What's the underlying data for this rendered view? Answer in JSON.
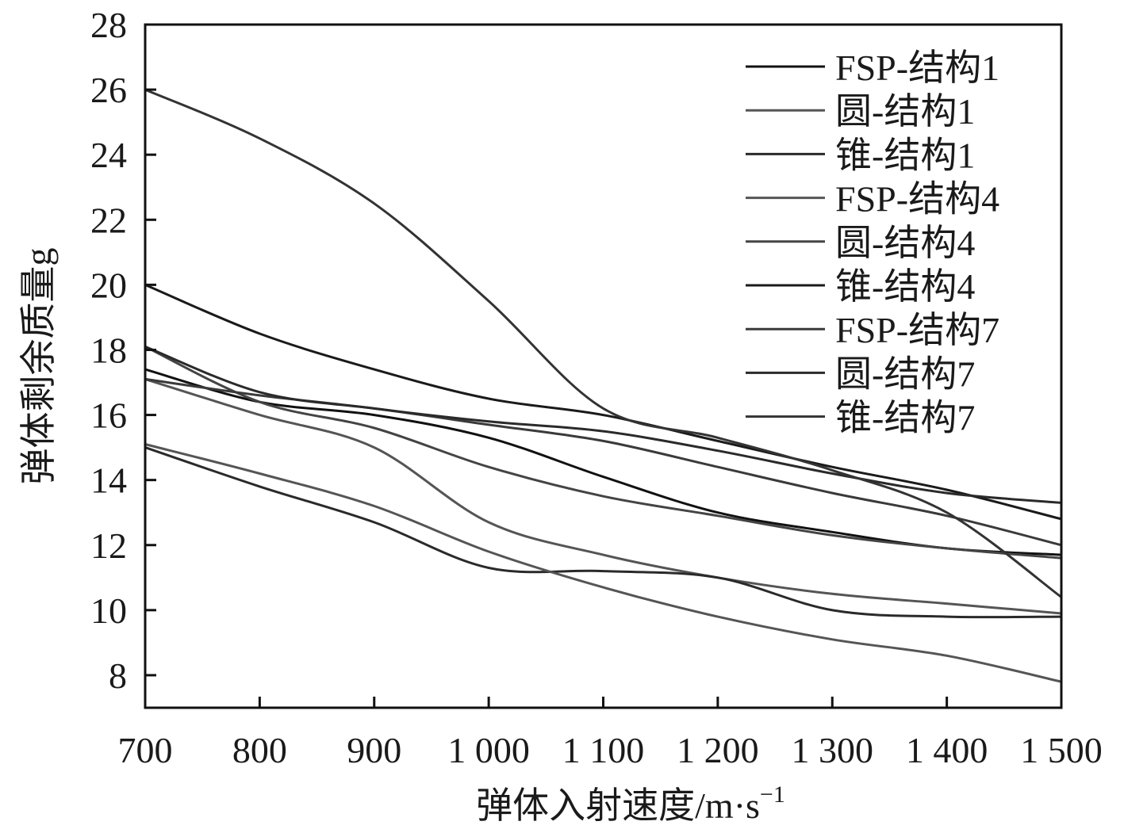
{
  "chart_data": {
    "type": "line",
    "xlabel": "弹体入射速度/m·s",
    "xlabel_sup": "−1",
    "ylabel": "弹体剩余质量g",
    "xlim": [
      700,
      1500
    ],
    "ylim": [
      7,
      28
    ],
    "x_ticks": [
      700,
      800,
      900,
      1000,
      1100,
      1200,
      1300,
      1400,
      1500
    ],
    "x_tick_labels": [
      "700",
      "800",
      "900",
      "1 000",
      "1 100",
      "1 200",
      "1 300",
      "1 400",
      "1 500"
    ],
    "y_ticks": [
      8,
      10,
      12,
      14,
      16,
      18,
      20,
      22,
      24,
      26,
      28
    ],
    "y_tick_labels": [
      "8",
      "10",
      "12",
      "14",
      "16",
      "18",
      "20",
      "22",
      "24",
      "26",
      "28"
    ],
    "grid": false,
    "legend_position": "top-right",
    "x": [
      700,
      800,
      900,
      1000,
      1100,
      1200,
      1300,
      1400,
      1500
    ],
    "series": [
      {
        "name": "FSP-结构1",
        "color": "#111111",
        "values": [
          17.4,
          16.4,
          16.0,
          15.3,
          14.1,
          13.0,
          12.4,
          11.9,
          11.7
        ]
      },
      {
        "name": "圆-结构1",
        "color": "#555555",
        "values": [
          17.1,
          16.0,
          15.0,
          12.7,
          11.7,
          11.0,
          10.5,
          10.2,
          9.9
        ]
      },
      {
        "name": "锥-结构1",
        "color": "#2a2a2a",
        "values": [
          15.0,
          13.8,
          12.7,
          11.3,
          11.2,
          11.0,
          10.0,
          9.8,
          9.8
        ]
      },
      {
        "name": "FSP-结构4",
        "color": "#555555",
        "values": [
          15.1,
          14.2,
          13.2,
          11.8,
          10.7,
          9.8,
          9.1,
          8.6,
          7.8
        ]
      },
      {
        "name": "圆-结构4",
        "color": "#444444",
        "values": [
          18.1,
          16.4,
          15.6,
          14.4,
          13.5,
          12.9,
          12.3,
          11.9,
          11.6
        ]
      },
      {
        "name": "锥-结构4",
        "color": "#1a1a1a",
        "values": [
          20.0,
          18.5,
          17.4,
          16.5,
          16.0,
          15.2,
          14.4,
          13.7,
          12.8
        ]
      },
      {
        "name": "FSP-结构7",
        "color": "#3a3a3a",
        "values": [
          17.1,
          16.6,
          16.2,
          15.7,
          15.2,
          14.4,
          13.6,
          12.9,
          12.0
        ]
      },
      {
        "name": "圆-结构7",
        "color": "#2a2a2a",
        "values": [
          18.1,
          16.7,
          16.2,
          15.8,
          15.5,
          14.9,
          14.2,
          13.6,
          13.3
        ]
      },
      {
        "name": "锥-结构7",
        "color": "#333333",
        "values": [
          26.0,
          24.5,
          22.5,
          19.5,
          16.2,
          15.3,
          14.3,
          13.0,
          10.4
        ]
      }
    ]
  }
}
